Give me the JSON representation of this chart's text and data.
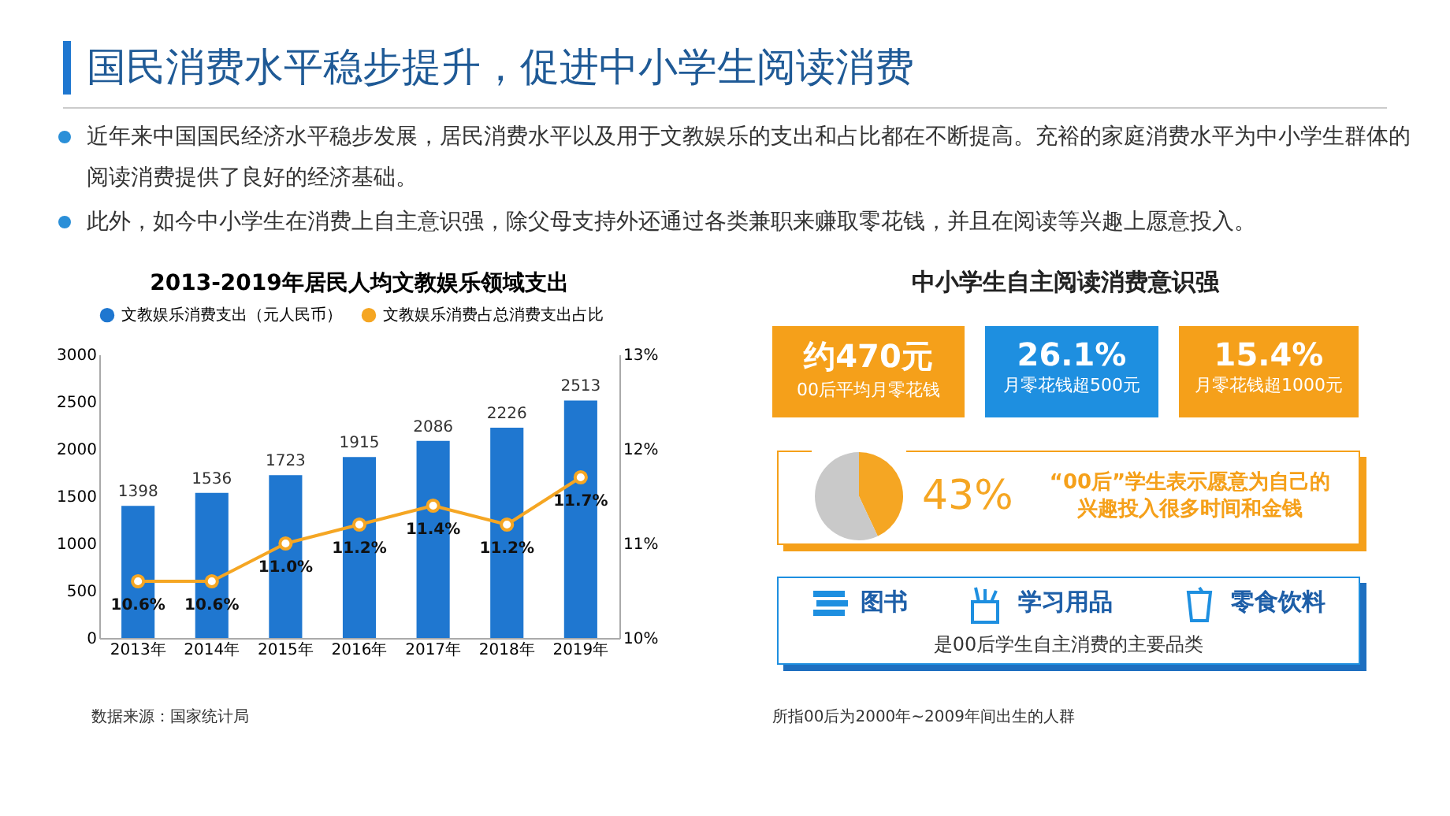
{
  "chart_data": [
    {
      "type": "other",
      "title": "国民消费水平稳步提升，促进中小学生阅读消费",
      "annotations": [
        "近年来中国国民经济水平稳步发展，居民消费水平以及用于文教娱乐的支出和占比都在不断提高。充裕的家庭消费水平为中小学生群体的阅读消费提供了良好的经济基础。",
        "此外，如今中小学生在消费上自主意识强，除父母支持外还通过各类兼职来赚取零花钱，并且在阅读等兴趣上愿意投入。"
      ]
    },
    {
      "type": "bar",
      "title": "2013-2019年居民人均文教娱乐领域支出",
      "categories": [
        "2013年",
        "2014年",
        "2015年",
        "2016年",
        "2017年",
        "2018年",
        "2019年"
      ],
      "series": [
        {
          "name": "文教娱乐消费支出（元人民币）",
          "color": "#1f77d0",
          "values": [
            1398,
            1536,
            1723,
            1915,
            2086,
            2226,
            2513
          ],
          "value_labels": [
            "1398",
            "1536",
            "1723",
            "1915",
            "2086",
            "2226",
            "2513"
          ]
        },
        {
          "name": "文教娱乐消费占总消费支出占比",
          "type": "line",
          "axis": "y2",
          "color": "#f5a623",
          "values": [
            10.6,
            10.6,
            11.0,
            11.2,
            11.4,
            11.2,
            11.7
          ],
          "value_labels": [
            "10.6%",
            "10.6%",
            "11.0%",
            "11.2%",
            "11.4%",
            "11.2%",
            "11.7%"
          ]
        }
      ],
      "ylim": [
        0,
        3000
      ],
      "yticks": [
        0,
        500,
        1000,
        1500,
        2000,
        2500,
        3000
      ],
      "y2lim": [
        10,
        13
      ],
      "y2ticks": [
        {
          "value": 10,
          "label": "10%"
        },
        {
          "value": 11,
          "label": "11%"
        },
        {
          "value": 12,
          "label": "12%"
        },
        {
          "value": 13,
          "label": "13%"
        }
      ],
      "marker": "circle",
      "legend": "top left",
      "annotations": [
        "数据来源：国家统计局"
      ]
    },
    {
      "type": "other",
      "title": "中小学生自主阅读消费意识强",
      "annotations": [
        "约470元",
        "00后平均月零花钱",
        "26.1%",
        "月零花钱超500元",
        "15.4%",
        "月零花钱超1000元",
        "图书",
        "学习用品",
        "零食饮料",
        "是00后学生自主消费的主要品类",
        "所指00后为2000年~2009年间出生的人群"
      ]
    },
    {
      "type": "pie",
      "categories": [
        null,
        null
      ],
      "values": [
        43,
        57
      ],
      "colors": [
        "#f5a623",
        "#c9c9c9"
      ],
      "value_labels": [
        "43%",
        null
      ],
      "annotations": [
        "“00后”学生表示愿意为自己的兴趣投入很多时间和金钱"
      ]
    }
  ]
}
